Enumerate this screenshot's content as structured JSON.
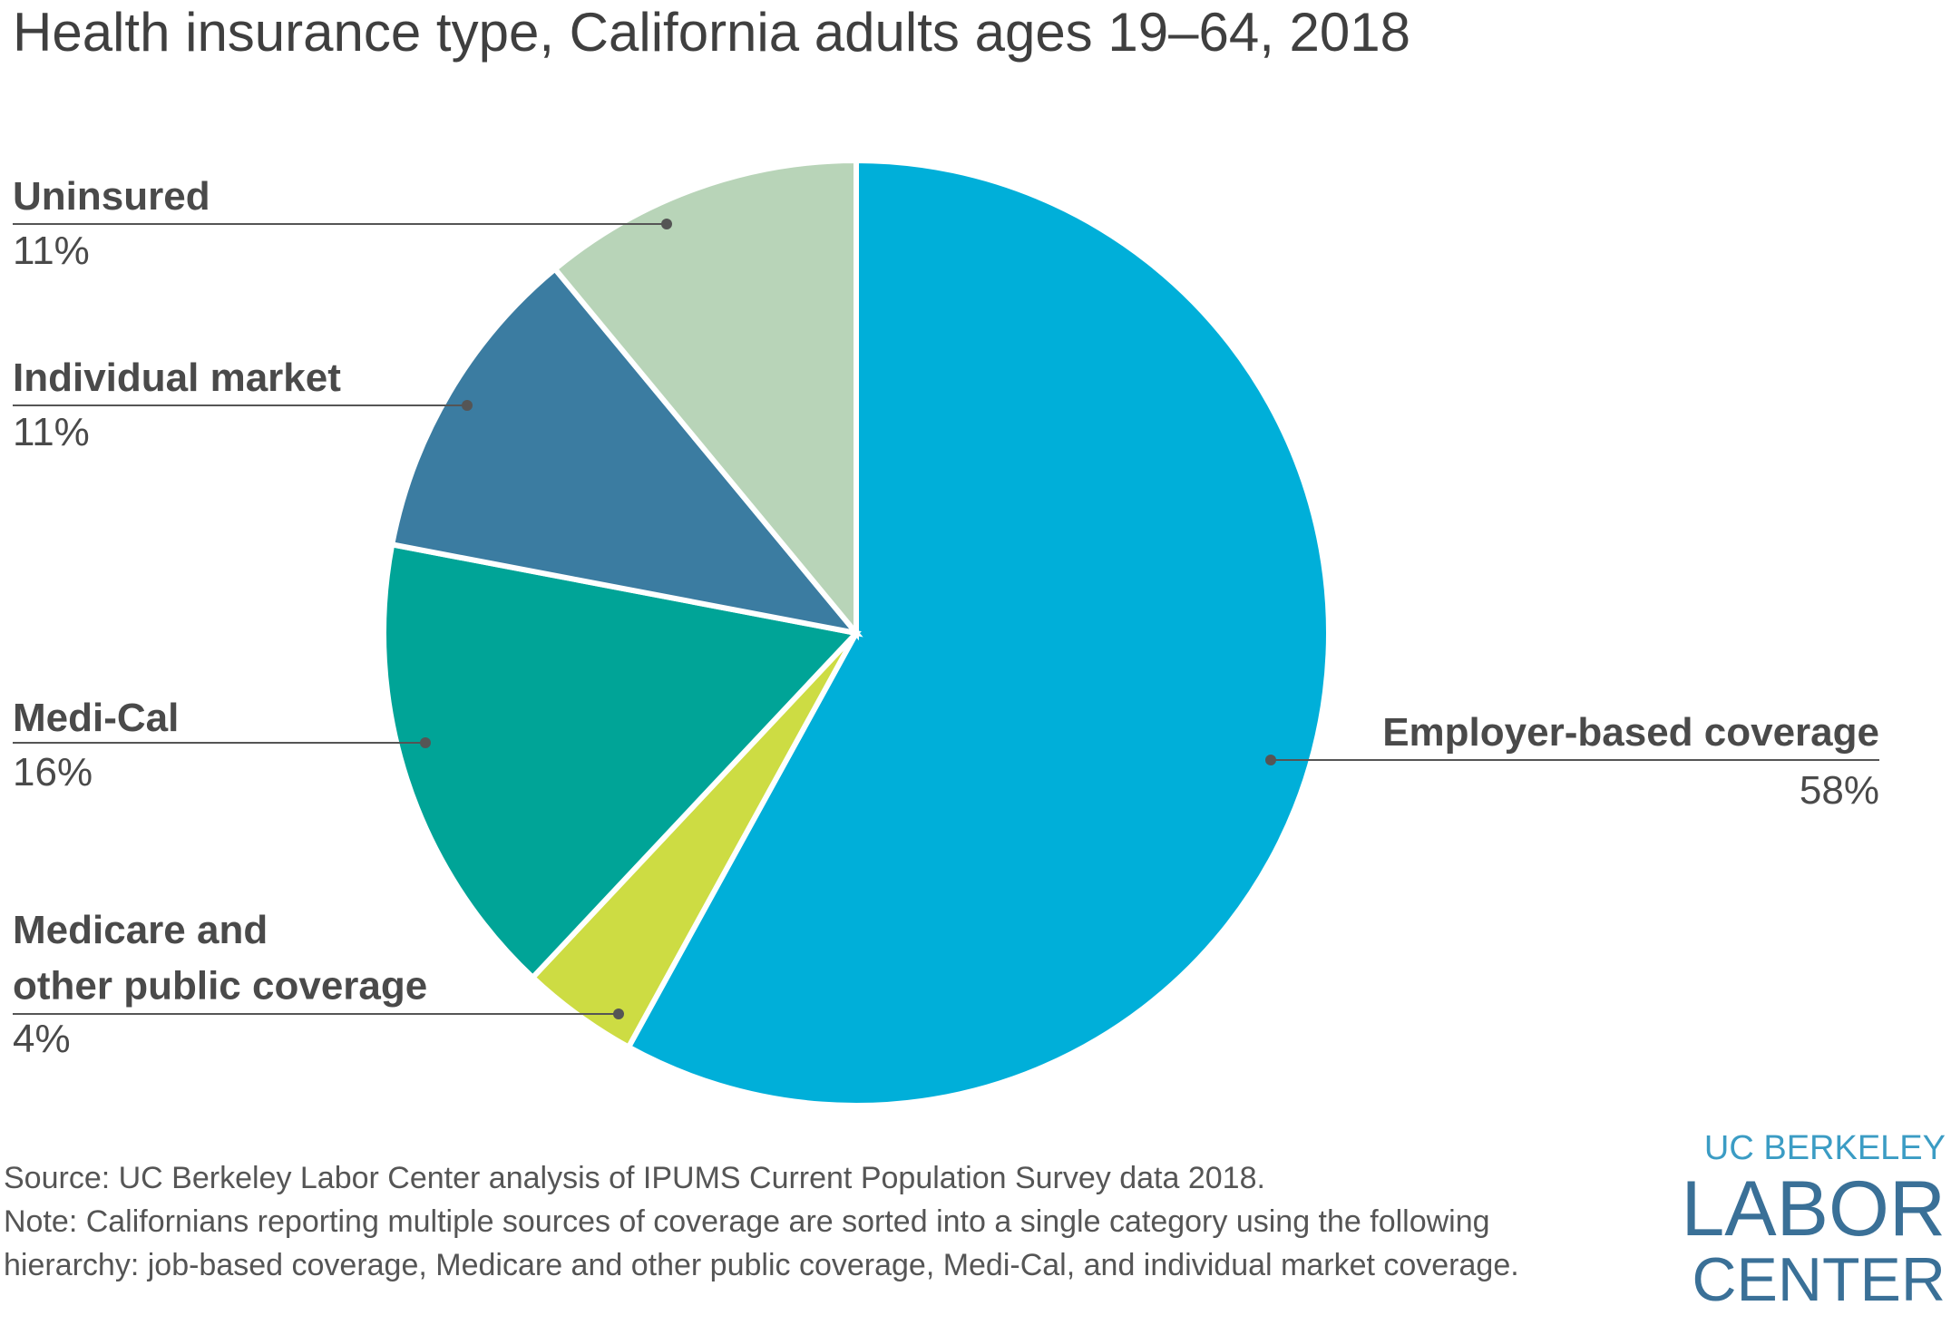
{
  "chart_data": {
    "type": "pie",
    "title": "Health insurance type, California adults ages 19–64, 2018",
    "categories": [
      "Employer-based coverage",
      "Medicare and\nother public coverage",
      "Medi-Cal",
      "Individual market",
      "Uninsured"
    ],
    "values": [
      58,
      4,
      16,
      11,
      11
    ],
    "value_labels": [
      "58%",
      "4%",
      "16%",
      "11%",
      "11%"
    ],
    "colors": [
      "#00afd9",
      "#cddc43",
      "#00a497",
      "#3b7ca1",
      "#b8d4b8"
    ],
    "source": "Source: UC Berkeley Labor Center analysis of IPUMS Current Population Survey data 2018.",
    "note": [
      "Note: Californians reporting multiple sources of coverage are sorted into a single category using the following",
      "hierarchy: job-based coverage, Medicare and other public coverage, Medi-Cal, and individual market coverage."
    ]
  },
  "logo": {
    "line1": "UC BERKELEY",
    "line2": "LABOR",
    "line3": "CENTER"
  }
}
